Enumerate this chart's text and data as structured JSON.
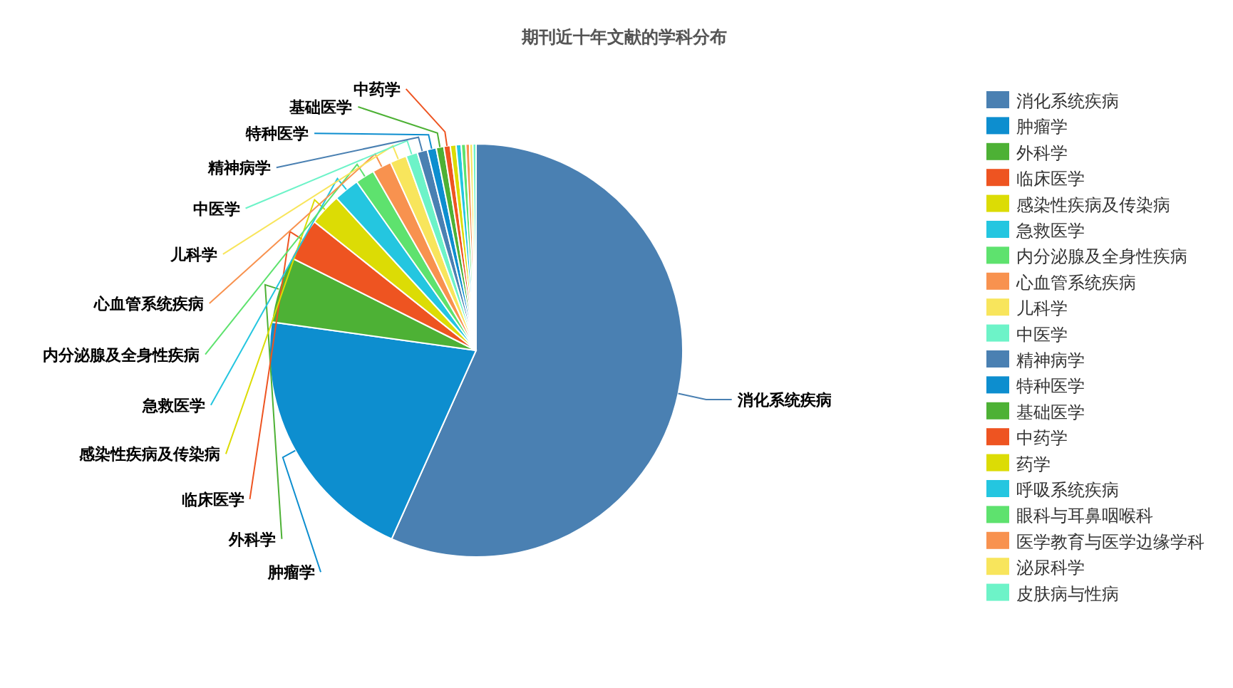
{
  "chart_data": {
    "type": "pie",
    "title": "期刊近十年文献的学科分布",
    "categories": [
      "消化系统疾病",
      "肿瘤学",
      "外科学",
      "临床医学",
      "感染性疾病及传染病",
      "急救医学",
      "内分泌腺及全身性疾病",
      "心血管系统疾病",
      "儿科学",
      "中医学",
      "精神病学",
      "特种医学",
      "基础医学",
      "中药学",
      "药学",
      "呼吸系统疾病",
      "眼科与耳鼻咽喉科",
      "医学教育与医学边缘学科",
      "泌尿科学",
      "皮肤病与性病"
    ],
    "values": [
      56.7,
      20.5,
      5.2,
      3.3,
      2.5,
      2.0,
      1.5,
      1.5,
      1.3,
      0.9,
      0.8,
      0.7,
      0.6,
      0.5,
      0.45,
      0.4,
      0.35,
      0.3,
      0.25,
      0.25
    ],
    "colors": [
      "#4a80b2",
      "#0d8ecf",
      "#4db135",
      "#ee5421",
      "#dcdc05",
      "#24c6e0",
      "#5ee26e",
      "#f8924f",
      "#f8e55c",
      "#6df3c8",
      "#4a80b2",
      "#0d8ecf",
      "#4db135",
      "#ee5421",
      "#dcdc05",
      "#24c6e0",
      "#5ee26e",
      "#f8924f",
      "#f8e55c",
      "#6df3c8"
    ],
    "annotations": [
      "消化系统疾病",
      "肿瘤学",
      "外科学",
      "临床医学",
      "感染性疾病及传染病",
      "急救医学",
      "内分泌腺及全身性疾病",
      "心血管系统疾病",
      "儿科学",
      "中医学",
      "精神病学",
      "特种医学",
      "基础医学",
      "中药学"
    ],
    "legend": "right"
  }
}
